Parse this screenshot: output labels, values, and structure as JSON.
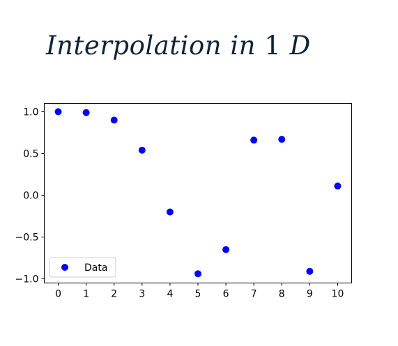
{
  "title": {
    "word1": "Interpolation",
    "word2": "in",
    "number": "1",
    "letter": "D"
  },
  "chart_data": {
    "type": "scatter",
    "title": "Interpolation in 1 D",
    "xlabel": "",
    "ylabel": "",
    "xlim": [
      -0.5,
      10.5
    ],
    "ylim": [
      -1.05,
      1.1
    ],
    "xticks": [
      0,
      1,
      2,
      3,
      4,
      5,
      6,
      7,
      8,
      9,
      10
    ],
    "xtick_labels": [
      "0",
      "1",
      "2",
      "3",
      "4",
      "5",
      "6",
      "7",
      "8",
      "9",
      "10"
    ],
    "yticks": [
      1.0,
      0.5,
      0.0,
      -0.5,
      -1.0
    ],
    "ytick_labels": [
      "1.0",
      "0.5",
      "0.0",
      "−0.5",
      "−1.0"
    ],
    "grid": false,
    "legend_position": "lower-left",
    "series": [
      {
        "name": "Data",
        "color": "#0000ff",
        "marker": "circle",
        "x": [
          0,
          1,
          2,
          3,
          4,
          5,
          6,
          7,
          8,
          9,
          10
        ],
        "y": [
          1.0,
          0.99,
          0.9,
          0.54,
          -0.2,
          -0.94,
          -0.65,
          0.66,
          0.67,
          -0.91,
          0.11
        ]
      }
    ]
  }
}
